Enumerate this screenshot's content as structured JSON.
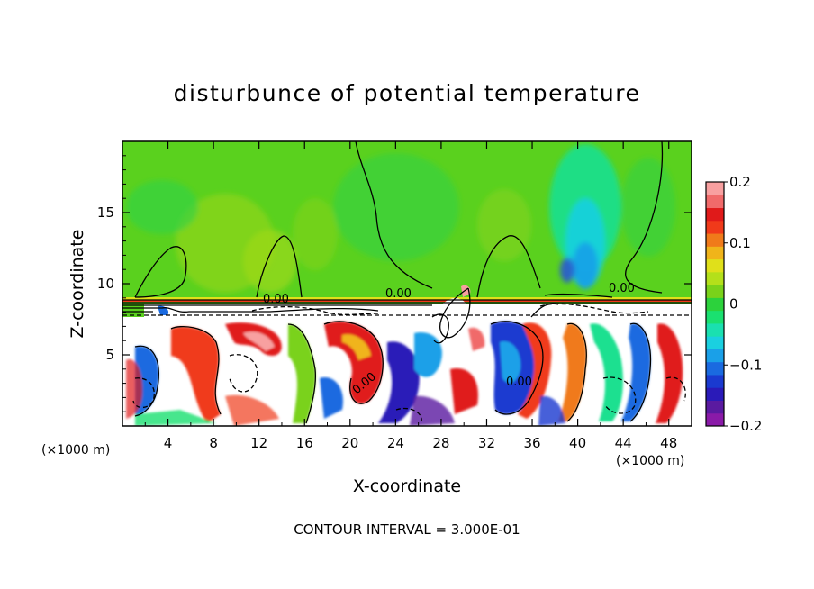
{
  "chart_data": {
    "type": "heatmap",
    "title": "disturbunce of potential temperature",
    "xlabel": "X-coordinate",
    "ylabel": "Z-coordinate",
    "x_unit": "(×1000 m)",
    "x_unit_right": "(×1000 m)",
    "xlim": [
      0,
      50
    ],
    "ylim": [
      0,
      20
    ],
    "x_ticks": [
      4,
      8,
      12,
      16,
      20,
      24,
      28,
      32,
      36,
      40,
      44,
      48
    ],
    "y_ticks": [
      5,
      10,
      15
    ],
    "colorbar": {
      "range": [
        -0.2,
        0.2
      ],
      "tick_values": [
        0.2,
        0.1,
        0,
        -0.1,
        -0.2
      ],
      "tick_labels": [
        "0.2",
        "0.1",
        "0",
        "−0.1",
        "−0.2"
      ],
      "colors": [
        "#8a1aa8",
        "#5a1aa0",
        "#2a1ab8",
        "#1a3ad0",
        "#1a6ae0",
        "#1aa0e8",
        "#1ad0e0",
        "#1ae0b0",
        "#1ae070",
        "#2cd23c",
        "#7ad21a",
        "#b4e01a",
        "#e0e01a",
        "#f0b41a",
        "#f07a1a",
        "#f03a1a",
        "#e01a1a",
        "#f06a6a",
        "#f8a0a0"
      ]
    },
    "contour_interval": "CONTOUR INTERVAL = 3.000E-01",
    "contour_labels": [
      "0.00",
      "0.00",
      "0.00",
      "0.00",
      "0.00"
    ]
  }
}
